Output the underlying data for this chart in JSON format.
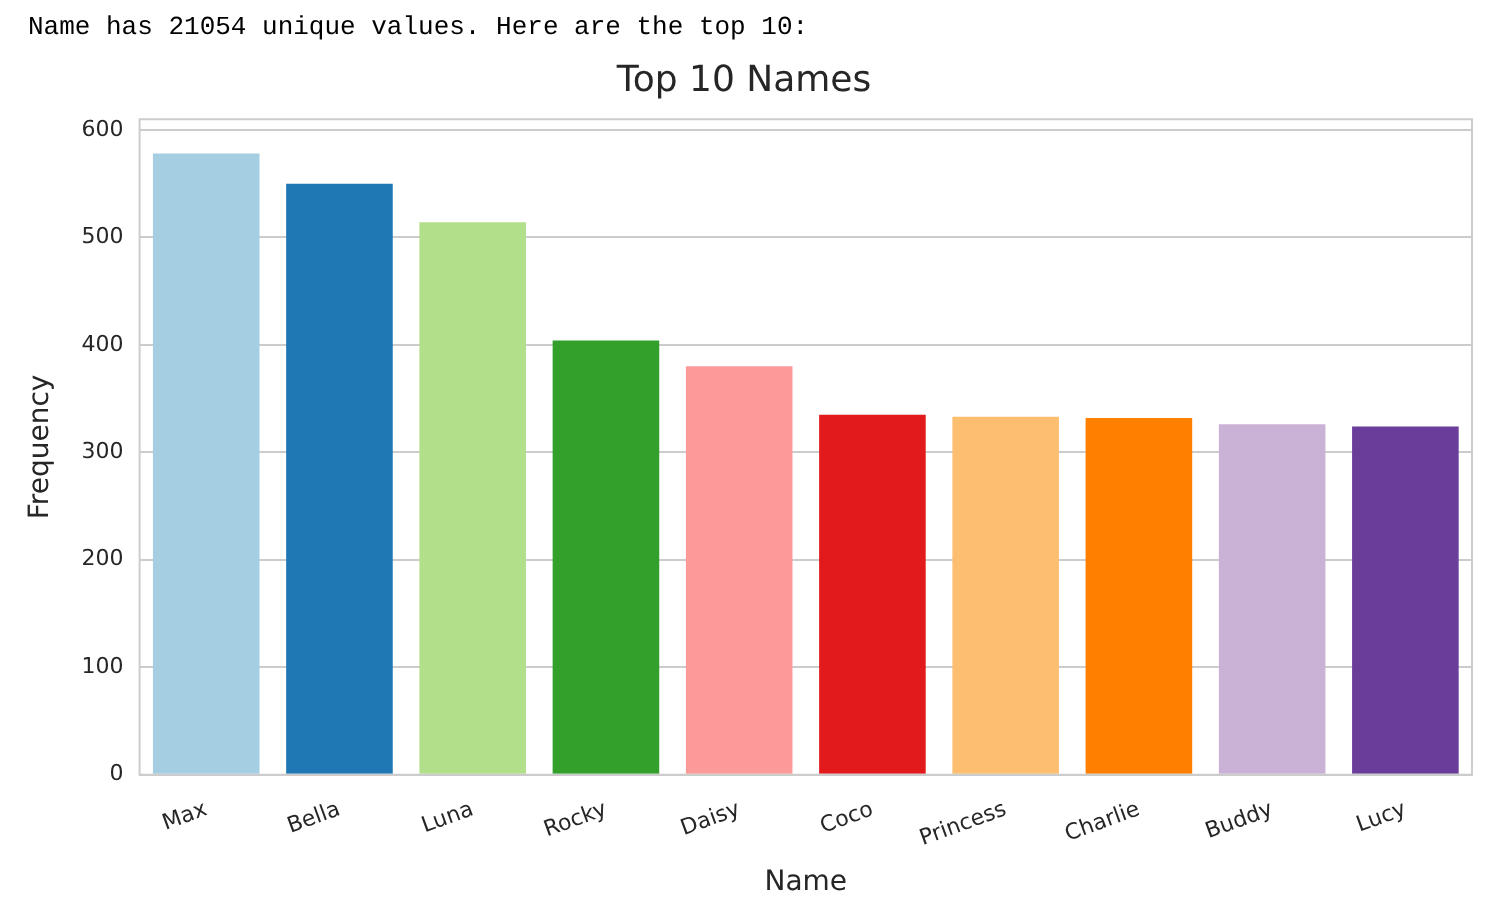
{
  "chart_data": {
    "type": "bar",
    "title": "Top 10 Names",
    "xlabel": "Name",
    "ylabel": "Frequency",
    "annotations": [
      "Name has 21054 unique values. Here are the top 10:"
    ],
    "categories": [
      "Max",
      "Bella",
      "Luna",
      "Rocky",
      "Daisy",
      "Coco",
      "Princess",
      "Charlie",
      "Buddy",
      "Lucy"
    ],
    "values": [
      578,
      550,
      514,
      404,
      380,
      335,
      333,
      332,
      326,
      324
    ],
    "colors": [
      "#a6cee3",
      "#1f78b4",
      "#b2df8a",
      "#33a02c",
      "#fb9a99",
      "#e31a1c",
      "#fdbf6f",
      "#ff7f00",
      "#cab2d6",
      "#6a3d9a"
    ],
    "ylim": [
      0,
      610
    ],
    "yticks": [
      0,
      100,
      200,
      300,
      400,
      500,
      600
    ],
    "grid": "y",
    "legend": false
  }
}
